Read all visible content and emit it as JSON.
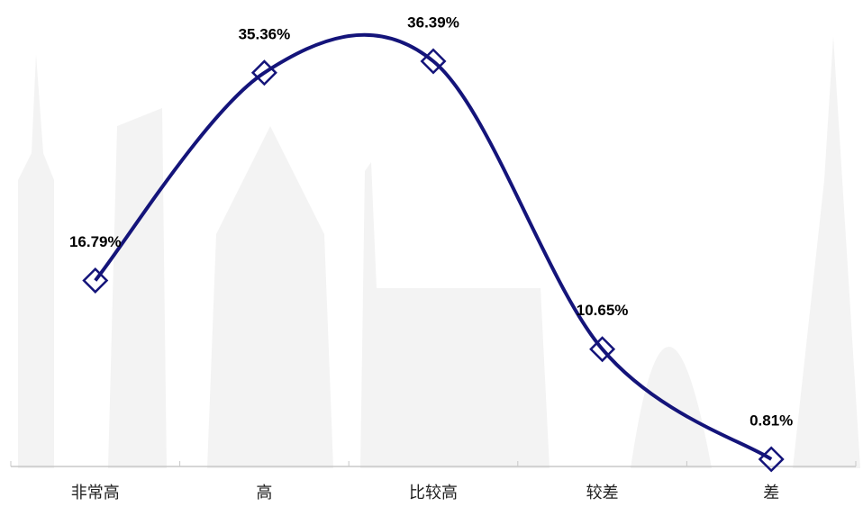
{
  "chart_data": {
    "type": "line",
    "categories": [
      "非常高",
      "高",
      "比较高",
      "较差",
      "差"
    ],
    "values": [
      16.79,
      35.36,
      36.39,
      10.65,
      0.81
    ],
    "value_labels": [
      "16.79%",
      "35.36%",
      "36.39%",
      "10.65%",
      "0.81%"
    ],
    "color": "#14147a"
  }
}
